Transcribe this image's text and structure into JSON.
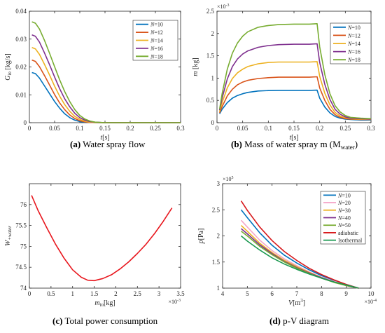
{
  "chart_data": [
    {
      "id": "a",
      "type": "line",
      "caption_letter": "(a)",
      "caption_text": " Water spray flow",
      "ylabel": "G",
      "ylabel_sub": "in",
      "ylabel_unit": " [kg/s]",
      "xlabel_italic": "t",
      "xlabel_unit": "[s]",
      "xlim": [
        0,
        0.3
      ],
      "ylim": [
        0,
        0.04
      ],
      "xticks": [
        0,
        0.05,
        0.1,
        0.15,
        0.2,
        0.25,
        0.3
      ],
      "xtick_labels": [
        "0",
        "0.05",
        "0.1",
        "0.15",
        "0.2",
        "0.25",
        "0.3"
      ],
      "yticks": [
        0,
        0.01,
        0.02,
        0.03,
        0.04
      ],
      "ytick_labels": [
        "0",
        "0.01",
        "0.02",
        "0.03",
        "0.04"
      ],
      "legend_position": "top-right",
      "series": [
        {
          "name": "N=10",
          "legend_var": "N",
          "legend_val": "=10",
          "color": "#0072BD",
          "x": [
            0.005,
            0.012,
            0.02,
            0.03,
            0.04,
            0.05,
            0.06,
            0.07,
            0.08,
            0.09,
            0.1,
            0.11,
            0.12,
            0.13,
            0.15,
            0.2,
            0.3
          ],
          "y": [
            0.018,
            0.0176,
            0.016,
            0.0132,
            0.0104,
            0.0076,
            0.0052,
            0.0032,
            0.0018,
            0.0009,
            0.0004,
            0.0002,
            0.0001,
            5e-05,
            0,
            0,
            0
          ]
        },
        {
          "name": "N=12",
          "legend_var": "N",
          "legend_val": "=12",
          "color": "#D95319",
          "x": [
            0.005,
            0.012,
            0.02,
            0.03,
            0.04,
            0.05,
            0.06,
            0.07,
            0.08,
            0.09,
            0.1,
            0.11,
            0.12,
            0.13,
            0.15,
            0.2,
            0.3
          ],
          "y": [
            0.0225,
            0.022,
            0.0201,
            0.0169,
            0.0135,
            0.0101,
            0.0071,
            0.0047,
            0.0028,
            0.0015,
            0.0007,
            0.0003,
            0.0001,
            5e-05,
            0,
            0,
            0
          ]
        },
        {
          "name": "N=14",
          "legend_var": "N",
          "legend_val": "=14",
          "color": "#EDB120",
          "x": [
            0.005,
            0.012,
            0.02,
            0.03,
            0.04,
            0.05,
            0.06,
            0.07,
            0.08,
            0.09,
            0.1,
            0.11,
            0.12,
            0.13,
            0.15,
            0.2,
            0.3
          ],
          "y": [
            0.027,
            0.0265,
            0.0245,
            0.0209,
            0.0171,
            0.0131,
            0.0095,
            0.0065,
            0.0041,
            0.0023,
            0.0012,
            0.0005,
            0.0002,
            0.0001,
            0,
            0,
            0
          ]
        },
        {
          "name": "N=16",
          "legend_var": "N",
          "legend_val": "=16",
          "color": "#7E2F8E",
          "x": [
            0.005,
            0.012,
            0.02,
            0.03,
            0.04,
            0.05,
            0.06,
            0.07,
            0.08,
            0.09,
            0.1,
            0.11,
            0.12,
            0.13,
            0.15,
            0.2,
            0.3
          ],
          "y": [
            0.0315,
            0.031,
            0.0289,
            0.025,
            0.0208,
            0.0164,
            0.0122,
            0.0086,
            0.0057,
            0.0034,
            0.0018,
            0.0009,
            0.0004,
            0.0002,
            0,
            0,
            0
          ]
        },
        {
          "name": "N=18",
          "legend_var": "N",
          "legend_val": "=18",
          "color": "#77AC30",
          "x": [
            0.005,
            0.012,
            0.02,
            0.03,
            0.04,
            0.05,
            0.06,
            0.07,
            0.08,
            0.09,
            0.1,
            0.11,
            0.12,
            0.13,
            0.15,
            0.2,
            0.3
          ],
          "y": [
            0.0362,
            0.0357,
            0.0336,
            0.0295,
            0.0249,
            0.0201,
            0.0154,
            0.0112,
            0.0076,
            0.0047,
            0.0026,
            0.0013,
            0.0006,
            0.0002,
            0,
            0,
            0
          ]
        }
      ]
    },
    {
      "id": "b",
      "type": "line",
      "caption_letter": "(b)",
      "caption_text": " Mass of water spray m (M",
      "caption_sub": "water",
      "caption_end": ")",
      "ylabel_italic": "m",
      "ylabel_unit": " [kg]",
      "xlabel_italic": "t",
      "xlabel_unit": "[s]",
      "exponent_label": "×10",
      "exponent_power": "-3",
      "xlim": [
        0,
        0.3
      ],
      "ylim": [
        0,
        2.5
      ],
      "xticks": [
        0,
        0.05,
        0.1,
        0.15,
        0.2,
        0.25,
        0.3
      ],
      "xtick_labels": [
        "0",
        "0.05",
        "0.1",
        "0.15",
        "0.2",
        "0.25",
        "0.3"
      ],
      "yticks": [
        0,
        0.5,
        1,
        1.5,
        2,
        2.5
      ],
      "ytick_labels": [
        "0",
        "0.5",
        "1",
        "1.5",
        "2",
        "2.5"
      ],
      "legend_position": "top-right",
      "series": [
        {
          "name": "N=10",
          "legend_var": "N",
          "legend_val": "=10",
          "color": "#0072BD",
          "x": [
            0.005,
            0.01,
            0.02,
            0.03,
            0.04,
            0.05,
            0.06,
            0.08,
            0.1,
            0.12,
            0.15,
            0.18,
            0.195,
            0.2,
            0.21,
            0.22,
            0.23,
            0.24,
            0.25,
            0.26,
            0.28,
            0.3
          ],
          "y": [
            0.2,
            0.3,
            0.45,
            0.55,
            0.61,
            0.65,
            0.68,
            0.71,
            0.72,
            0.725,
            0.725,
            0.725,
            0.73,
            0.55,
            0.35,
            0.22,
            0.14,
            0.1,
            0.08,
            0.07,
            0.06,
            0.06
          ]
        },
        {
          "name": "N=12",
          "legend_var": "N",
          "legend_val": "=12",
          "color": "#D95319",
          "x": [
            0.005,
            0.01,
            0.02,
            0.03,
            0.04,
            0.05,
            0.06,
            0.08,
            0.1,
            0.12,
            0.15,
            0.18,
            0.195,
            0.2,
            0.21,
            0.22,
            0.23,
            0.24,
            0.25,
            0.26,
            0.28,
            0.3
          ],
          "y": [
            0.22,
            0.36,
            0.6,
            0.75,
            0.85,
            0.91,
            0.95,
            0.99,
            1.01,
            1.02,
            1.02,
            1.02,
            1.03,
            0.78,
            0.5,
            0.3,
            0.18,
            0.12,
            0.09,
            0.08,
            0.07,
            0.07
          ]
        },
        {
          "name": "N=14",
          "legend_var": "N",
          "legend_val": "=14",
          "color": "#EDB120",
          "x": [
            0.005,
            0.01,
            0.02,
            0.03,
            0.04,
            0.05,
            0.06,
            0.08,
            0.1,
            0.12,
            0.15,
            0.18,
            0.195,
            0.2,
            0.21,
            0.22,
            0.23,
            0.24,
            0.25,
            0.26,
            0.28,
            0.3
          ],
          "y": [
            0.25,
            0.45,
            0.78,
            0.99,
            1.12,
            1.2,
            1.26,
            1.32,
            1.35,
            1.36,
            1.36,
            1.36,
            1.37,
            1.04,
            0.66,
            0.4,
            0.23,
            0.15,
            0.11,
            0.09,
            0.08,
            0.07
          ]
        },
        {
          "name": "N=16",
          "legend_var": "N",
          "legend_val": "=16",
          "color": "#7E2F8E",
          "x": [
            0.005,
            0.01,
            0.02,
            0.03,
            0.04,
            0.05,
            0.06,
            0.08,
            0.1,
            0.12,
            0.15,
            0.18,
            0.195,
            0.2,
            0.21,
            0.22,
            0.23,
            0.24,
            0.25,
            0.26,
            0.28,
            0.3
          ],
          "y": [
            0.28,
            0.55,
            0.98,
            1.26,
            1.43,
            1.54,
            1.61,
            1.69,
            1.73,
            1.75,
            1.76,
            1.76,
            1.77,
            1.35,
            0.86,
            0.52,
            0.3,
            0.19,
            0.13,
            0.1,
            0.09,
            0.08
          ]
        },
        {
          "name": "N=18",
          "legend_var": "N",
          "legend_val": "=18",
          "color": "#77AC30",
          "x": [
            0.005,
            0.01,
            0.02,
            0.03,
            0.04,
            0.05,
            0.06,
            0.08,
            0.1,
            0.12,
            0.15,
            0.18,
            0.195,
            0.2,
            0.21,
            0.22,
            0.23,
            0.24,
            0.25,
            0.26,
            0.28,
            0.3
          ],
          "y": [
            0.3,
            0.65,
            1.2,
            1.56,
            1.79,
            1.94,
            2.04,
            2.14,
            2.18,
            2.2,
            2.21,
            2.21,
            2.22,
            1.7,
            1.08,
            0.65,
            0.38,
            0.24,
            0.16,
            0.12,
            0.1,
            0.09
          ]
        }
      ]
    },
    {
      "id": "c",
      "type": "line",
      "caption_letter": "(c)",
      "caption_text": " Total power consumption",
      "ylabel_italic": "W",
      "ylabel_sub": "+water",
      "xlabel_italic": "m",
      "xlabel_sub": "in",
      "xlabel_unit": "[kg]",
      "exponent_label": "×10",
      "exponent_power": "-3",
      "xlim": [
        0,
        3.5
      ],
      "ylim": [
        74,
        76.5
      ],
      "xticks": [
        0,
        0.5,
        1,
        1.5,
        2,
        2.5,
        3,
        3.5
      ],
      "xtick_labels": [
        "0",
        "0.5",
        "1",
        "1.5",
        "2",
        "2.5",
        "3",
        "3.5"
      ],
      "yticks": [
        74,
        74.5,
        75,
        75.5,
        76
      ],
      "ytick_labels": [
        "74",
        "74.5",
        "75",
        "75.5",
        "76"
      ],
      "series": [
        {
          "name": "",
          "color": "#E8171E",
          "x": [
            0.05,
            0.2,
            0.4,
            0.6,
            0.8,
            1.0,
            1.2,
            1.35,
            1.5,
            1.7,
            1.9,
            2.1,
            2.3,
            2.5,
            2.7,
            2.9,
            3.1,
            3.3
          ],
          "y": [
            76.22,
            75.86,
            75.45,
            75.06,
            74.72,
            74.44,
            74.26,
            74.19,
            74.18,
            74.23,
            74.32,
            74.46,
            74.63,
            74.83,
            75.05,
            75.31,
            75.6,
            75.92
          ]
        }
      ]
    },
    {
      "id": "d",
      "type": "line",
      "caption_letter": "(d)",
      "caption_text": " p-V diagram",
      "ylabel_italic": "p",
      "ylabel_unit": "[Pa]",
      "xlabel_italic": "V",
      "xlabel_unit": "[m",
      "xlabel_sup": "3",
      "xlabel_end": "]",
      "x_exponent_label": "×10",
      "x_exponent_power": "-4",
      "y_exponent_label": "×10",
      "y_exponent_power": "5",
      "xlim": [
        4,
        10
      ],
      "ylim": [
        1,
        3
      ],
      "xticks": [
        4,
        5,
        6,
        7,
        8,
        9,
        10
      ],
      "xtick_labels": [
        "4",
        "5",
        "6",
        "7",
        "8",
        "9",
        "10"
      ],
      "yticks": [
        1,
        1.5,
        2,
        2.5,
        3
      ],
      "ytick_labels": [
        "1",
        "1.5",
        "2",
        "2.5",
        "3"
      ],
      "legend_position": "top-right",
      "series": [
        {
          "name": "N=10",
          "legend_var": "N",
          "legend_val": "=10",
          "color": "#0072BD",
          "x": [
            4.75,
            5.0,
            5.5,
            6.0,
            6.5,
            7.0,
            7.5,
            8.0,
            8.5,
            9.0,
            9.5
          ],
          "y": [
            2.5,
            2.35,
            2.06,
            1.82,
            1.63,
            1.48,
            1.35,
            1.24,
            1.15,
            1.07,
            1.0
          ]
        },
        {
          "name": "N=20",
          "legend_var": "N",
          "legend_val": "=20",
          "color": "#F4A6C8",
          "x": [
            4.75,
            5.0,
            5.5,
            6.0,
            6.5,
            7.0,
            7.5,
            8.0,
            8.5,
            9.0,
            9.5
          ],
          "y": [
            2.3,
            2.17,
            1.92,
            1.72,
            1.56,
            1.43,
            1.31,
            1.21,
            1.13,
            1.06,
            1.0
          ]
        },
        {
          "name": "N=30",
          "legend_var": "N",
          "legend_val": "=30",
          "color": "#EDB120",
          "x": [
            4.75,
            5.0,
            5.5,
            6.0,
            6.5,
            7.0,
            7.5,
            8.0,
            8.5,
            9.0,
            9.5
          ],
          "y": [
            2.2,
            2.09,
            1.86,
            1.68,
            1.53,
            1.41,
            1.3,
            1.2,
            1.12,
            1.05,
            1.0
          ]
        },
        {
          "name": "N=40",
          "legend_var": "N",
          "legend_val": "=40",
          "color": "#7E2F8E",
          "x": [
            4.75,
            5.0,
            5.5,
            6.0,
            6.5,
            7.0,
            7.5,
            8.0,
            8.5,
            9.0,
            9.5
          ],
          "y": [
            2.14,
            2.04,
            1.83,
            1.66,
            1.51,
            1.39,
            1.29,
            1.2,
            1.12,
            1.05,
            1.0
          ]
        },
        {
          "name": "N=50",
          "legend_var": "N",
          "legend_val": "=50",
          "color": "#77AC30",
          "x": [
            4.75,
            5.0,
            5.5,
            6.0,
            6.5,
            7.0,
            7.5,
            8.0,
            8.5,
            9.0,
            9.5
          ],
          "y": [
            2.09,
            2.0,
            1.8,
            1.64,
            1.5,
            1.38,
            1.28,
            1.19,
            1.11,
            1.05,
            1.0
          ]
        },
        {
          "name": "adiabatic",
          "legend_val": "adiabatic",
          "color": "#D7191C",
          "x": [
            4.75,
            5.0,
            5.5,
            6.0,
            6.5,
            7.0,
            7.5,
            8.0,
            8.5,
            9.0,
            9.5
          ],
          "y": [
            2.67,
            2.49,
            2.17,
            1.91,
            1.7,
            1.53,
            1.38,
            1.26,
            1.16,
            1.07,
            1.0
          ]
        },
        {
          "name": "Isothermal",
          "legend_val": "Isothermal",
          "color": "#1A9850",
          "x": [
            4.75,
            5.0,
            5.5,
            6.0,
            6.5,
            7.0,
            7.5,
            8.0,
            8.5,
            9.0,
            9.5
          ],
          "y": [
            2.0,
            1.9,
            1.73,
            1.58,
            1.46,
            1.36,
            1.27,
            1.19,
            1.12,
            1.06,
            1.0
          ]
        }
      ]
    }
  ]
}
